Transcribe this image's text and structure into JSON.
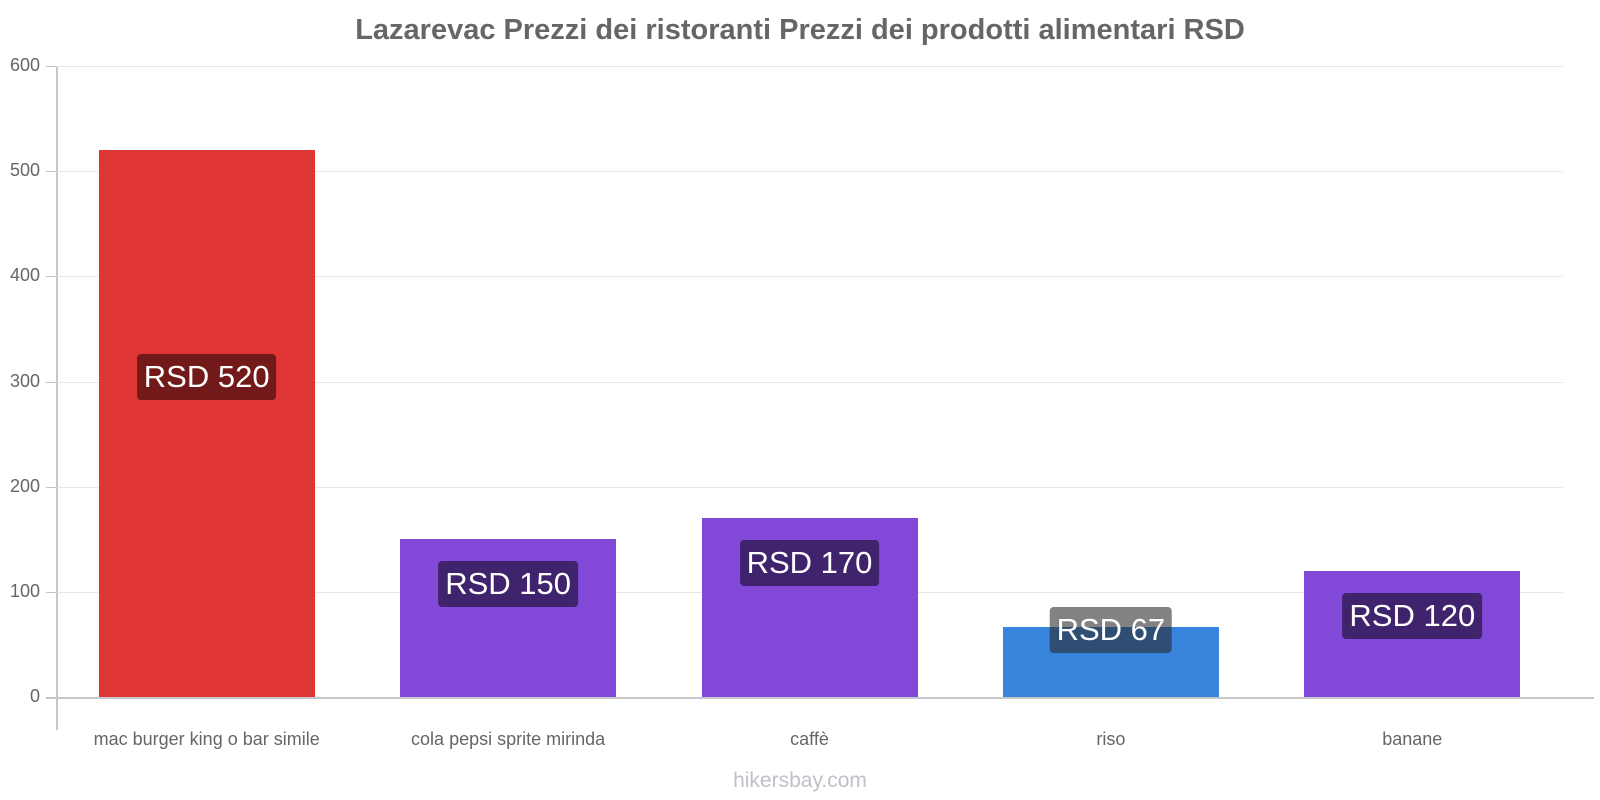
{
  "title": "Lazarevac Prezzi dei ristoranti Prezzi dei prodotti alimentari RSD",
  "watermark": "hikersbay.com",
  "y_axis": {
    "ticks": [
      "0",
      "100",
      "200",
      "300",
      "400",
      "500",
      "600"
    ]
  },
  "bars": [
    {
      "category": "mac burger king o bar simile",
      "label": "RSD 520",
      "value": 520,
      "color": "#e03535",
      "label_bg": "#721a1a"
    },
    {
      "category": "cola pepsi sprite mirinda",
      "label": "RSD 150",
      "value": 150,
      "color": "#8249d8",
      "label_bg": "#3f236c"
    },
    {
      "category": "caffè",
      "label": "RSD 170",
      "value": 170,
      "color": "#8249d8",
      "label_bg": "#3f236c"
    },
    {
      "category": "riso",
      "label": "RSD 67",
      "value": 67,
      "color": "#3884dd",
      "label_bg": "rgba(40,40,40,0.58)"
    },
    {
      "category": "banane",
      "label": "RSD 120",
      "value": 120,
      "color": "#8249d8",
      "label_bg": "#3f236c"
    }
  ],
  "chart_data": {
    "type": "bar",
    "title": "Lazarevac Prezzi dei ristoranti Prezzi dei prodotti alimentari RSD",
    "categories": [
      "mac burger king o bar simile",
      "cola pepsi sprite mirinda",
      "caffè",
      "riso",
      "banane"
    ],
    "values": [
      520,
      150,
      170,
      67,
      120
    ],
    "data_labels": [
      "RSD 520",
      "RSD 150",
      "RSD 170",
      "RSD 67",
      "RSD 120"
    ],
    "colors": [
      "#e03535",
      "#8249d8",
      "#8249d8",
      "#3884dd",
      "#8249d8"
    ],
    "xlabel": "",
    "ylabel": "",
    "ylim": [
      0,
      600
    ],
    "yticks": [
      0,
      100,
      200,
      300,
      400,
      500,
      600
    ],
    "grid": true,
    "legend": "none"
  }
}
